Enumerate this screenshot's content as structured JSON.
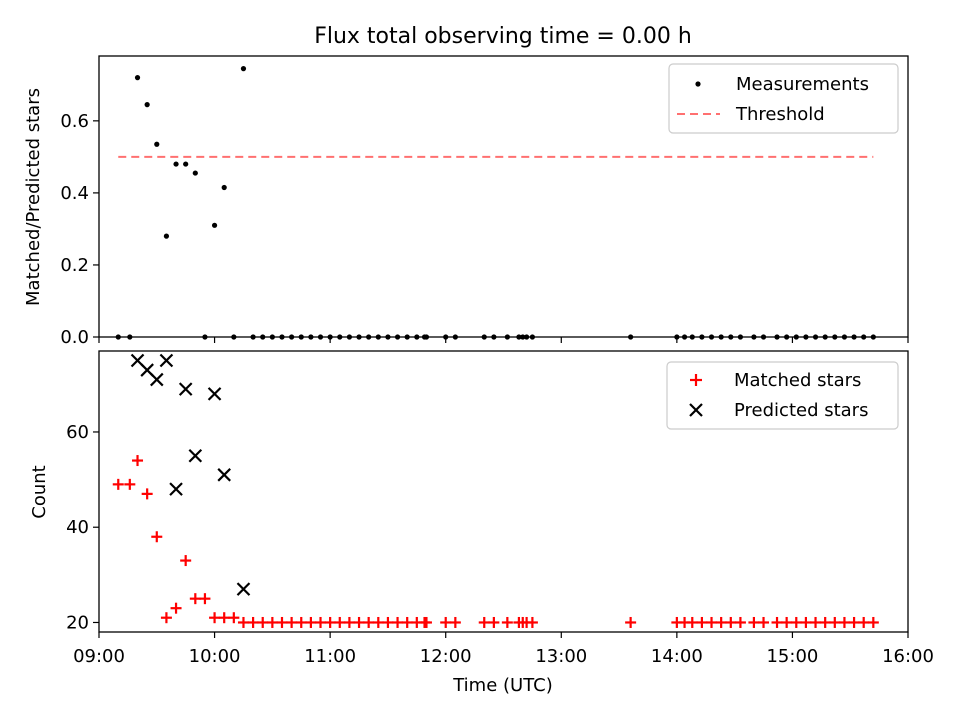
{
  "chart_data": [
    {
      "type": "scatter",
      "title": "Flux total observing time = 0.00 h",
      "xlabel": "",
      "ylabel": "Matched/Predicted stars",
      "xlim": [
        "09:00",
        "16:00"
      ],
      "ylim": [
        0,
        0.78
      ],
      "yticks": [
        0.0,
        0.2,
        0.4,
        0.6
      ],
      "ytick_labels": [
        "0.0",
        "0.2",
        "0.4",
        "0.6"
      ],
      "legend_position": "top-right",
      "series": [
        {
          "name": "Measurements",
          "kind": "scatter",
          "color": "#000000",
          "marker": "dot",
          "x": [
            "09:10",
            "09:16",
            "09:20",
            "09:25",
            "09:30",
            "09:35",
            "09:40",
            "09:45",
            "09:50",
            "09:55",
            "10:00",
            "10:05",
            "10:10",
            "10:15",
            "10:20",
            "10:25",
            "10:30",
            "10:35",
            "10:40",
            "10:45",
            "10:50",
            "10:55",
            "11:00",
            "11:05",
            "11:10",
            "11:15",
            "11:20",
            "11:25",
            "11:30",
            "11:35",
            "11:40",
            "11:45",
            "11:49",
            "11:50",
            "12:00",
            "12:05",
            "12:20",
            "12:25",
            "12:32",
            "12:38",
            "12:40",
            "12:42",
            "12:45",
            "13:36",
            "14:00",
            "14:04",
            "14:08",
            "14:13",
            "14:18",
            "14:23",
            "14:28",
            "14:33",
            "14:40",
            "14:45",
            "14:52",
            "14:57",
            "15:02",
            "15:07",
            "15:12",
            "15:17",
            "15:22",
            "15:27",
            "15:32",
            "15:37",
            "15:42"
          ],
          "y": [
            0.0,
            0.0,
            0.72,
            0.645,
            0.535,
            0.28,
            0.48,
            0.48,
            0.455,
            0.0,
            0.31,
            0.415,
            0.0,
            0.745,
            0.0,
            0.0,
            0.0,
            0.0,
            0.0,
            0.0,
            0.0,
            0.0,
            0.0,
            0.0,
            0.0,
            0.0,
            0.0,
            0.0,
            0.0,
            0.0,
            0.0,
            0.0,
            0.0,
            0.0,
            0.0,
            0.0,
            0.0,
            0.0,
            0.0,
            0.0,
            0.0,
            0.0,
            0.0,
            0.0,
            0.0,
            0.0,
            0.0,
            0.0,
            0.0,
            0.0,
            0.0,
            0.0,
            0.0,
            0.0,
            0.0,
            0.0,
            0.0,
            0.0,
            0.0,
            0.0,
            0.0,
            0.0,
            0.0,
            0.0,
            0.0
          ]
        },
        {
          "name": "Threshold",
          "kind": "line",
          "color": "#ff7070",
          "style": "dashed",
          "x": [
            "09:10",
            "15:42"
          ],
          "y": [
            0.5,
            0.5
          ]
        }
      ]
    },
    {
      "type": "scatter",
      "title": "",
      "xlabel": "Time (UTC)",
      "ylabel": "Count",
      "xlim": [
        "09:00",
        "16:00"
      ],
      "xticks": [
        "09:00",
        "10:00",
        "11:00",
        "12:00",
        "13:00",
        "14:00",
        "15:00",
        "16:00"
      ],
      "ylim": [
        18,
        77
      ],
      "yticks": [
        20,
        40,
        60
      ],
      "ytick_labels": [
        "20",
        "40",
        "60"
      ],
      "legend_position": "top-right",
      "series": [
        {
          "name": "Matched stars",
          "kind": "scatter",
          "color": "#ff0000",
          "marker": "plus",
          "x": [
            "09:10",
            "09:16",
            "09:20",
            "09:25",
            "09:30",
            "09:35",
            "09:40",
            "09:45",
            "09:50",
            "09:55",
            "10:00",
            "10:05",
            "10:10",
            "10:15",
            "10:20",
            "10:25",
            "10:30",
            "10:35",
            "10:40",
            "10:45",
            "10:50",
            "10:55",
            "11:00",
            "11:05",
            "11:10",
            "11:15",
            "11:20",
            "11:25",
            "11:30",
            "11:35",
            "11:40",
            "11:45",
            "11:49",
            "11:50",
            "12:00",
            "12:05",
            "12:20",
            "12:25",
            "12:32",
            "12:38",
            "12:40",
            "12:42",
            "12:45",
            "13:36",
            "14:00",
            "14:04",
            "14:08",
            "14:13",
            "14:18",
            "14:23",
            "14:28",
            "14:33",
            "14:40",
            "14:45",
            "14:52",
            "14:57",
            "15:02",
            "15:07",
            "15:12",
            "15:17",
            "15:22",
            "15:27",
            "15:32",
            "15:37",
            "15:42"
          ],
          "y": [
            49,
            49,
            54,
            47,
            38,
            21,
            23,
            33,
            25,
            25,
            21,
            21,
            21,
            20,
            20,
            20,
            20,
            20,
            20,
            20,
            20,
            20,
            20,
            20,
            20,
            20,
            20,
            20,
            20,
            20,
            20,
            20,
            20,
            20,
            20,
            20,
            20,
            20,
            20,
            20,
            20,
            20,
            20,
            20,
            20,
            20,
            20,
            20,
            20,
            20,
            20,
            20,
            20,
            20,
            20,
            20,
            20,
            20,
            20,
            20,
            20,
            20,
            20,
            20,
            20
          ]
        },
        {
          "name": "Predicted stars",
          "kind": "scatter",
          "color": "#000000",
          "marker": "x",
          "x": [
            "09:20",
            "09:25",
            "09:30",
            "09:35",
            "09:40",
            "09:45",
            "09:50",
            "10:00",
            "10:05",
            "10:15"
          ],
          "y": [
            75,
            73,
            71,
            75,
            48,
            69,
            55,
            68,
            51,
            27
          ]
        }
      ]
    }
  ]
}
